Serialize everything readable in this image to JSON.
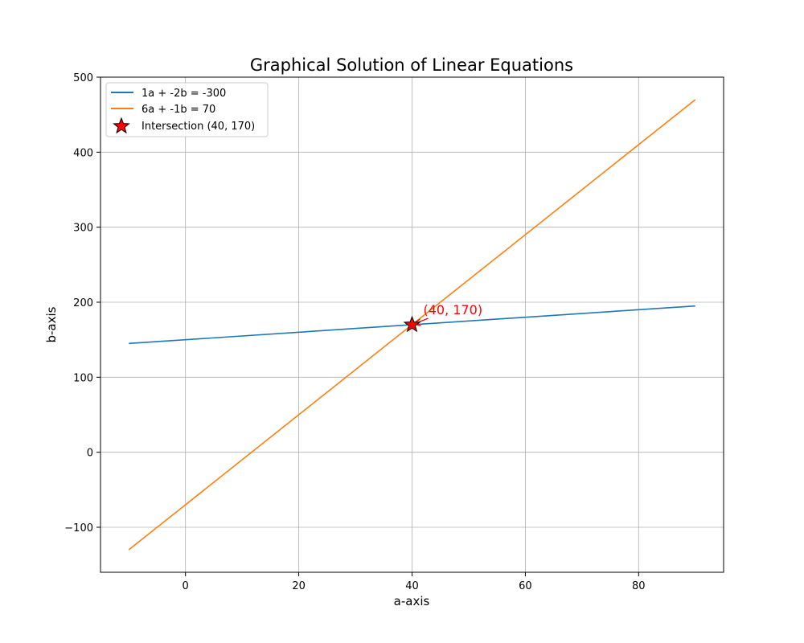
{
  "chart_data": {
    "type": "line",
    "title": "Graphical Solution of Linear Equations",
    "xlabel": "a-axis",
    "ylabel": "b-axis",
    "xlim": [
      -15,
      95
    ],
    "ylim": [
      -160,
      500
    ],
    "xticks": [
      0,
      20,
      40,
      60,
      80
    ],
    "yticks": [
      -100,
      0,
      100,
      200,
      300,
      400,
      500
    ],
    "xtick_labels": [
      "0",
      "20",
      "40",
      "60",
      "80"
    ],
    "ytick_labels": [
      "−100",
      "0",
      "100",
      "200",
      "300",
      "400",
      "500"
    ],
    "grid": true,
    "legend_placement": "top-left",
    "series": [
      {
        "name": "1a + -2b = -300",
        "color": "#1f77b4",
        "x": [
          -10,
          90
        ],
        "y": [
          145,
          195
        ]
      },
      {
        "name": "6a + -1b = 70",
        "color": "#ff7f0e",
        "x": [
          -10,
          90
        ],
        "y": [
          -130,
          470
        ]
      }
    ],
    "intersection": {
      "name": "Intersection (40, 170)",
      "x": 40,
      "y": 170,
      "marker": "star",
      "fill": "#ff0000",
      "edge": "#000000"
    },
    "annotation": {
      "text": "(40, 170)",
      "x": 40,
      "y": 170,
      "color": "#ff0000"
    }
  }
}
